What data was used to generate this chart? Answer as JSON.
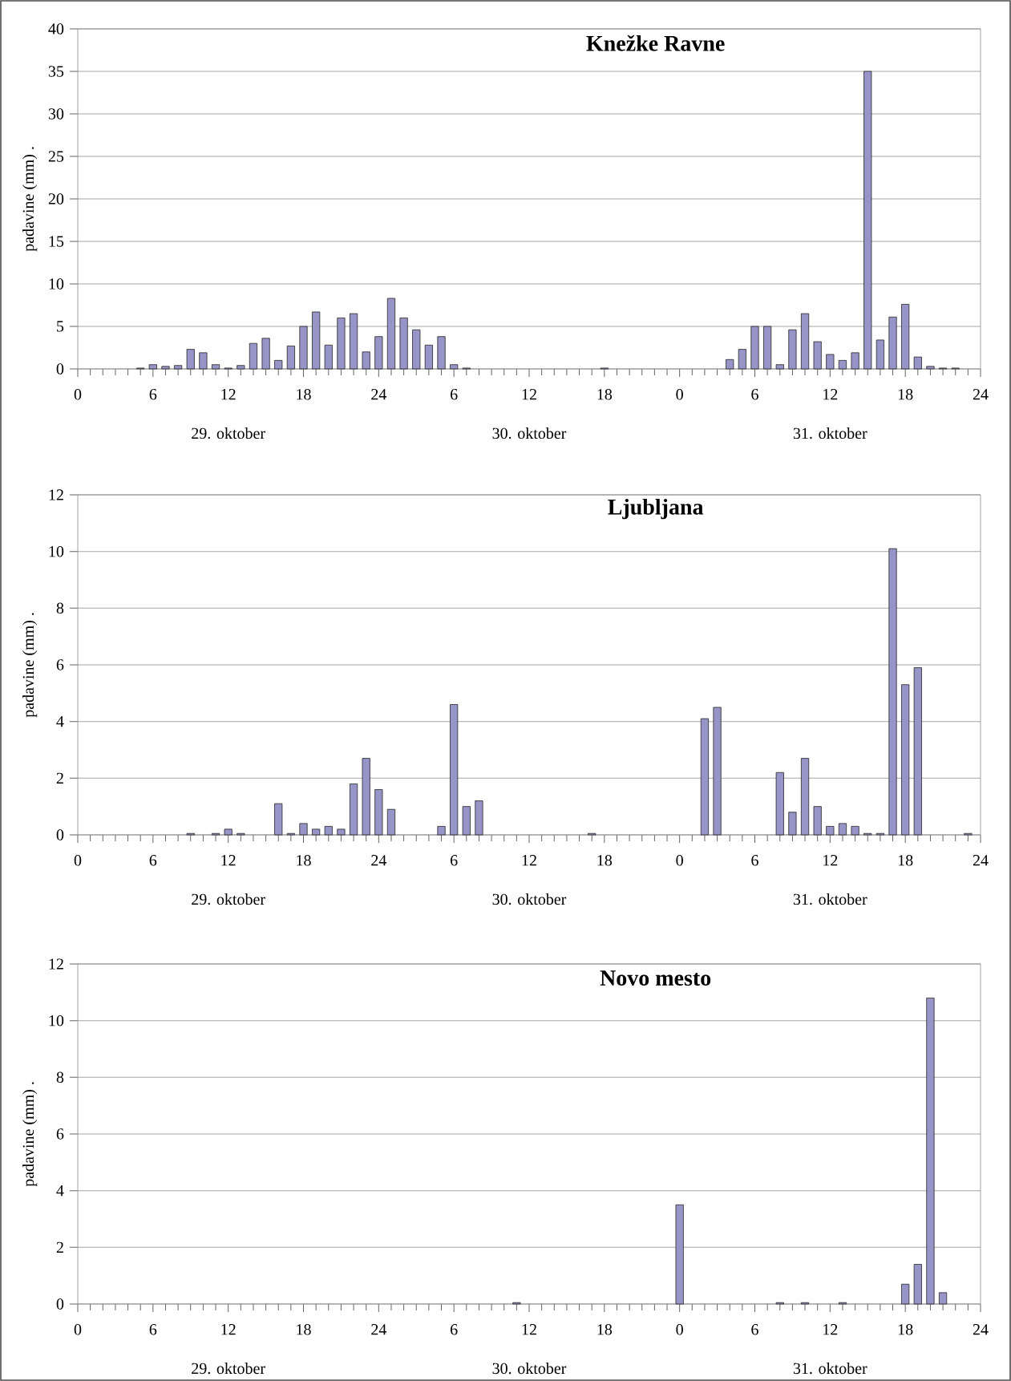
{
  "chart_data": [
    {
      "type": "bar",
      "title": "Knežke Ravne",
      "ylabel": "padavine (mm) .",
      "color": "#9794c8",
      "grid": "y",
      "categories": [
        "0",
        null,
        null,
        null,
        null,
        null,
        "6",
        null,
        null,
        null,
        null,
        null,
        "12",
        null,
        null,
        null,
        null,
        null,
        "18",
        null,
        null,
        null,
        null,
        null,
        "24",
        null,
        null,
        null,
        null,
        null,
        "6",
        null,
        null,
        null,
        null,
        null,
        "12",
        null,
        null,
        null,
        null,
        null,
        "18",
        null,
        null,
        null,
        null,
        null,
        "0",
        null,
        null,
        null,
        null,
        null,
        "6",
        null,
        null,
        null,
        null,
        null,
        "12",
        null,
        null,
        null,
        null,
        null,
        "18",
        null,
        null,
        null,
        null,
        null,
        "24"
      ],
      "values": [
        null,
        null,
        null,
        null,
        null,
        0.1,
        0.5,
        0.3,
        0.4,
        2.3,
        1.9,
        0.5,
        0.1,
        0.4,
        3.0,
        3.6,
        1.0,
        2.7,
        5.0,
        6.7,
        2.8,
        6.0,
        6.5,
        2.0,
        3.8,
        8.3,
        6.0,
        4.6,
        2.8,
        3.8,
        0.5,
        0.1,
        null,
        null,
        null,
        null,
        null,
        null,
        null,
        null,
        null,
        null,
        0.1,
        null,
        null,
        null,
        null,
        null,
        null,
        null,
        null,
        null,
        1.1,
        2.3,
        5.0,
        5.0,
        0.5,
        4.6,
        6.5,
        3.2,
        1.7,
        1.0,
        1.9,
        35,
        3.4,
        6.1,
        7.6,
        1.4,
        0.3,
        0.1,
        0.1,
        null,
        null
      ],
      "ylim": [
        0,
        40
      ],
      "yticks": [
        0,
        5,
        10,
        15,
        20,
        25,
        30,
        35,
        40
      ],
      "annotations": [
        "29. oktober",
        "30. oktober",
        "31. oktober"
      ]
    },
    {
      "type": "bar",
      "title": "Ljubljana",
      "ylabel": "padavine (mm) .",
      "color": "#9794c8",
      "grid": "y",
      "categories": [
        "0",
        null,
        null,
        null,
        null,
        null,
        "6",
        null,
        null,
        null,
        null,
        null,
        "12",
        null,
        null,
        null,
        null,
        null,
        "18",
        null,
        null,
        null,
        null,
        null,
        "24",
        null,
        null,
        null,
        null,
        null,
        "6",
        null,
        null,
        null,
        null,
        null,
        "12",
        null,
        null,
        null,
        null,
        null,
        "18",
        null,
        null,
        null,
        null,
        null,
        "0",
        null,
        null,
        null,
        null,
        null,
        "6",
        null,
        null,
        null,
        null,
        null,
        "12",
        null,
        null,
        null,
        null,
        null,
        "18",
        null,
        null,
        null,
        null,
        null,
        "24"
      ],
      "values": [
        null,
        null,
        null,
        null,
        null,
        null,
        null,
        null,
        null,
        0.05,
        null,
        0.05,
        0.2,
        0.05,
        null,
        null,
        1.1,
        0.05,
        0.4,
        0.2,
        0.3,
        0.2,
        1.8,
        2.7,
        1.6,
        0.9,
        null,
        null,
        null,
        0.3,
        4.6,
        1.0,
        1.2,
        null,
        null,
        null,
        null,
        null,
        null,
        null,
        null,
        0.05,
        null,
        null,
        null,
        null,
        null,
        null,
        null,
        null,
        4.1,
        4.5,
        null,
        null,
        null,
        null,
        2.2,
        0.8,
        2.7,
        1.0,
        0.3,
        0.4,
        0.3,
        0.05,
        0.05,
        10.1,
        5.3,
        5.9,
        null,
        null,
        null,
        0.05,
        null
      ],
      "ylim": [
        0,
        12
      ],
      "yticks": [
        0,
        2,
        4,
        6,
        8,
        10,
        12
      ],
      "annotations": [
        "29. oktober",
        "30. oktober",
        "31. oktober"
      ]
    },
    {
      "type": "bar",
      "title": "Novo mesto",
      "ylabel": "padavine (mm) .",
      "color": "#9794c8",
      "grid": "y",
      "categories": [
        "0",
        null,
        null,
        null,
        null,
        null,
        "6",
        null,
        null,
        null,
        null,
        null,
        "12",
        null,
        null,
        null,
        null,
        null,
        "18",
        null,
        null,
        null,
        null,
        null,
        "24",
        null,
        null,
        null,
        null,
        null,
        "6",
        null,
        null,
        null,
        null,
        null,
        "12",
        null,
        null,
        null,
        null,
        null,
        "18",
        null,
        null,
        null,
        null,
        null,
        "0",
        null,
        null,
        null,
        null,
        null,
        "6",
        null,
        null,
        null,
        null,
        null,
        "12",
        null,
        null,
        null,
        null,
        null,
        "18",
        null,
        null,
        null,
        null,
        null,
        "24"
      ],
      "values": [
        null,
        null,
        null,
        null,
        null,
        null,
        null,
        null,
        null,
        null,
        null,
        null,
        null,
        null,
        null,
        null,
        null,
        null,
        null,
        null,
        null,
        null,
        null,
        null,
        null,
        null,
        null,
        null,
        null,
        null,
        null,
        null,
        null,
        null,
        null,
        0.05,
        null,
        null,
        null,
        null,
        null,
        null,
        null,
        null,
        null,
        null,
        null,
        null,
        3.5,
        null,
        null,
        null,
        null,
        null,
        null,
        null,
        0.05,
        null,
        0.05,
        null,
        null,
        0.05,
        null,
        null,
        null,
        null,
        0.7,
        1.4,
        10.8,
        0.4,
        null,
        null,
        null
      ],
      "ylim": [
        0,
        12
      ],
      "yticks": [
        0,
        2,
        4,
        6,
        8,
        10,
        12
      ],
      "annotations": [
        "29. oktober",
        "30. oktober",
        "31. oktober"
      ]
    }
  ]
}
